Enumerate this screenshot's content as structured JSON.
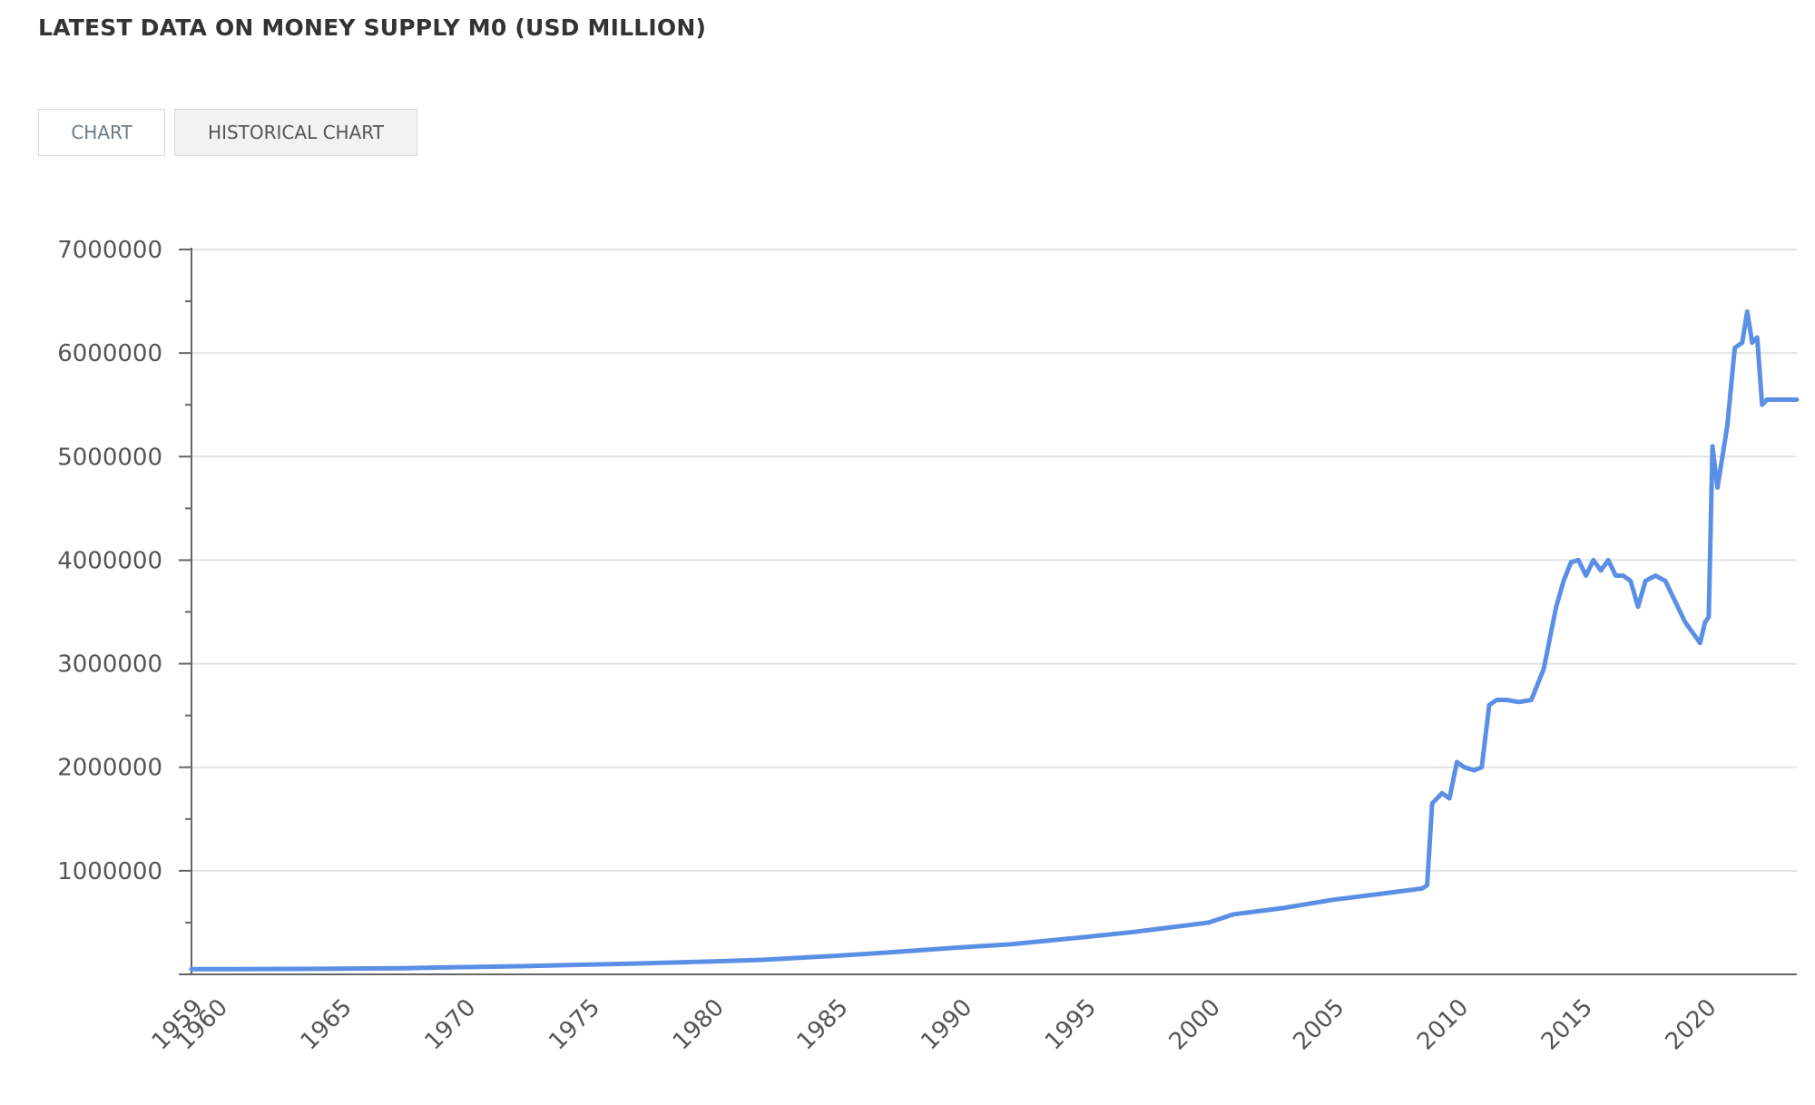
{
  "page": {
    "title": "LATEST DATA ON MONEY SUPPLY M0 (USD MILLION)"
  },
  "tabs": [
    {
      "label": "CHART",
      "active": false
    },
    {
      "label": "HISTORICAL CHART",
      "active": true
    }
  ],
  "colors": {
    "line": "#5b8fe6",
    "grid": "#e3e3e3",
    "axis": "#666666",
    "text": "#555555"
  },
  "chart_data": {
    "type": "line",
    "title": "",
    "xlabel": "",
    "ylabel": "",
    "xlim": [
      1959,
      2023.7
    ],
    "ylim": [
      0,
      7000000
    ],
    "grid": true,
    "legend": "none",
    "y_ticks": [
      1000000,
      2000000,
      3000000,
      4000000,
      5000000,
      6000000,
      7000000
    ],
    "y_tick_labels": [
      "1000000",
      "2000000",
      "3000000",
      "4000000",
      "5000000",
      "6000000",
      "7000000"
    ],
    "x_ticks": [
      1959,
      1960,
      1965,
      1970,
      1975,
      1980,
      1985,
      1990,
      1995,
      2000,
      2005,
      2010,
      2015,
      2020
    ],
    "x_tick_labels": [
      "1959",
      "1960",
      "1965",
      "1970",
      "1975",
      "1980",
      "1985",
      "1990",
      "1995",
      "2000",
      "2005",
      "2010",
      "2015",
      "2020"
    ],
    "series": [
      {
        "name": "",
        "x": [
          1959,
          1960,
          1962,
          1965,
          1967.5,
          1970,
          1972.5,
          1975,
          1977,
          1980,
          1982,
          1985,
          1987,
          1990,
          1992,
          1995,
          1997,
          2000,
          2001,
          2003,
          2005,
          2007,
          2008,
          2008.6,
          2008.8,
          2009,
          2009.4,
          2009.7,
          2010,
          2010.3,
          2010.7,
          2011,
          2011.3,
          2011.6,
          2012,
          2012.5,
          2013,
          2013.5,
          2014,
          2014.3,
          2014.6,
          2014.9,
          2015.2,
          2015.5,
          2015.8,
          2016.1,
          2016.4,
          2016.7,
          2017,
          2017.3,
          2017.6,
          2018,
          2018.4,
          2018.8,
          2019.2,
          2019.5,
          2019.8,
          2020,
          2020.15,
          2020.3,
          2020.5,
          2020.7,
          2020.9,
          2021.2,
          2021.5,
          2021.7,
          2021.9,
          2022.1,
          2022.3,
          2022.5,
          2022.7,
          2022.9,
          2023.2,
          2023.5,
          2023.7
        ],
        "y": [
          50000,
          50000,
          52000,
          55000,
          60000,
          70000,
          80000,
          95000,
          105000,
          125000,
          140000,
          180000,
          210000,
          260000,
          290000,
          360000,
          410000,
          500000,
          580000,
          640000,
          720000,
          780000,
          810000,
          830000,
          860000,
          1650000,
          1750000,
          1700000,
          2050000,
          2000000,
          1970000,
          2000000,
          2600000,
          2650000,
          2650000,
          2630000,
          2650000,
          2950000,
          3550000,
          3800000,
          3980000,
          4000000,
          3850000,
          4000000,
          3900000,
          4000000,
          3850000,
          3850000,
          3800000,
          3550000,
          3800000,
          3850000,
          3800000,
          3600000,
          3400000,
          3300000,
          3200000,
          3400000,
          3450000,
          5100000,
          4700000,
          5000000,
          5300000,
          6050000,
          6100000,
          6400000,
          6100000,
          6150000,
          5500000,
          5550000,
          5550000,
          5550000,
          5550000,
          5550000,
          5550000
        ]
      }
    ]
  }
}
